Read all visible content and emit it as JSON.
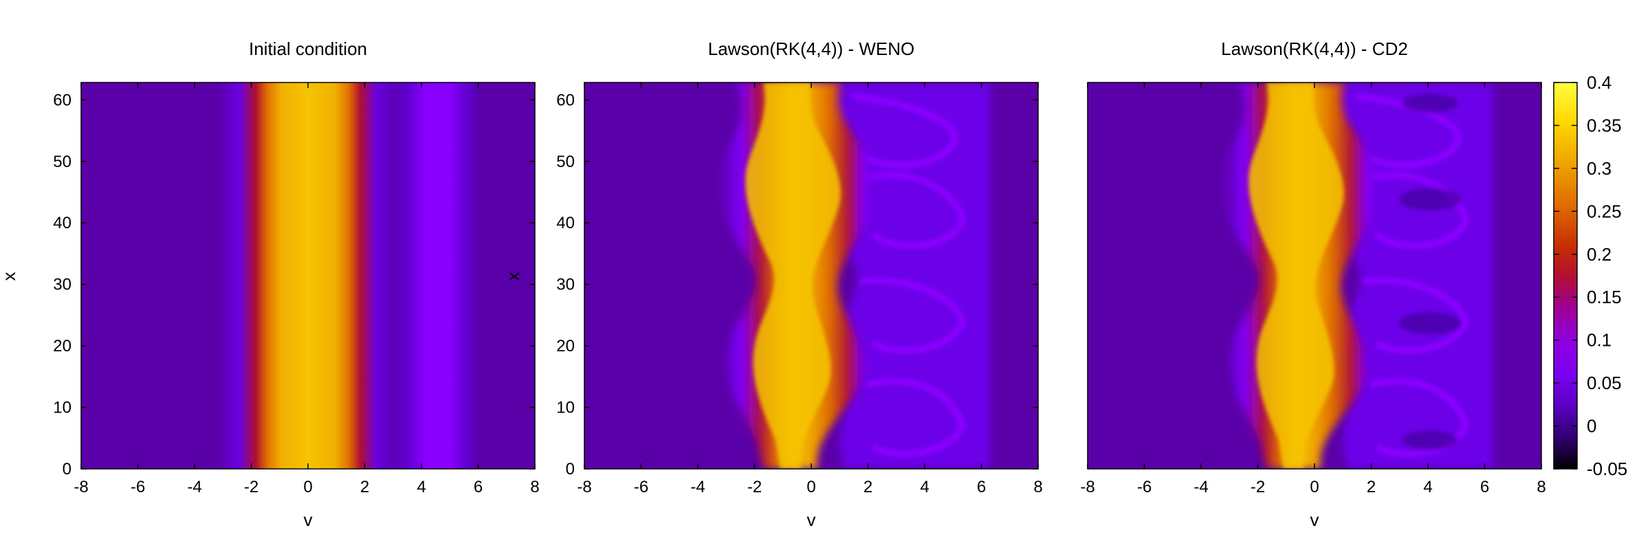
{
  "chart_data": [
    {
      "type": "heatmap",
      "title": "Initial condition",
      "xlabel": "v",
      "ylabel": "x",
      "xlim": [
        -8,
        8
      ],
      "ylim": [
        0,
        62.83
      ],
      "xticks": [
        "-8",
        "-6",
        "-4",
        "-2",
        "0",
        "2",
        "4",
        "6",
        "8"
      ],
      "yticks": [
        "0",
        "10",
        "20",
        "30",
        "40",
        "50",
        "60"
      ],
      "description_values": {
        "main_beam_center_v": 0,
        "second_beam_center_v": 4.5,
        "peak_value": 0.35,
        "background_value": 0.035
      }
    },
    {
      "type": "heatmap",
      "title": "Lawson(RK(4,4)) - WENO",
      "xlabel": "v",
      "ylabel": "x",
      "xlim": [
        -8,
        8
      ],
      "ylim": [
        0,
        62.83
      ],
      "xticks": [
        "-8",
        "-6",
        "-4",
        "-2",
        "0",
        "2",
        "4",
        "6",
        "8"
      ],
      "yticks": [
        "0",
        "10",
        "20",
        "30",
        "40",
        "50",
        "60"
      ]
    },
    {
      "type": "heatmap",
      "title": "Lawson(RK(4,4)) - CD2",
      "xlabel": "v",
      "ylabel": "",
      "xlim": [
        -8,
        8
      ],
      "ylim": [
        0,
        62.83
      ],
      "xticks": [
        "-8",
        "-6",
        "-4",
        "-2",
        "0",
        "2",
        "4",
        "6",
        "8"
      ],
      "yticks": []
    }
  ],
  "colorbar": {
    "range": [
      -0.05,
      0.4
    ],
    "ticks": [
      "-0.05",
      "0",
      "0.05",
      "0.1",
      "0.15",
      "0.2",
      "0.25",
      "0.3",
      "0.35",
      "0.4"
    ],
    "colormap": [
      "#000000",
      "#3a0080",
      "#6a00e0",
      "#8a10ff",
      "#a000c0",
      "#b01a2a",
      "#cc3300",
      "#e86a00",
      "#f0a000",
      "#ffd000",
      "#ffff30"
    ]
  }
}
